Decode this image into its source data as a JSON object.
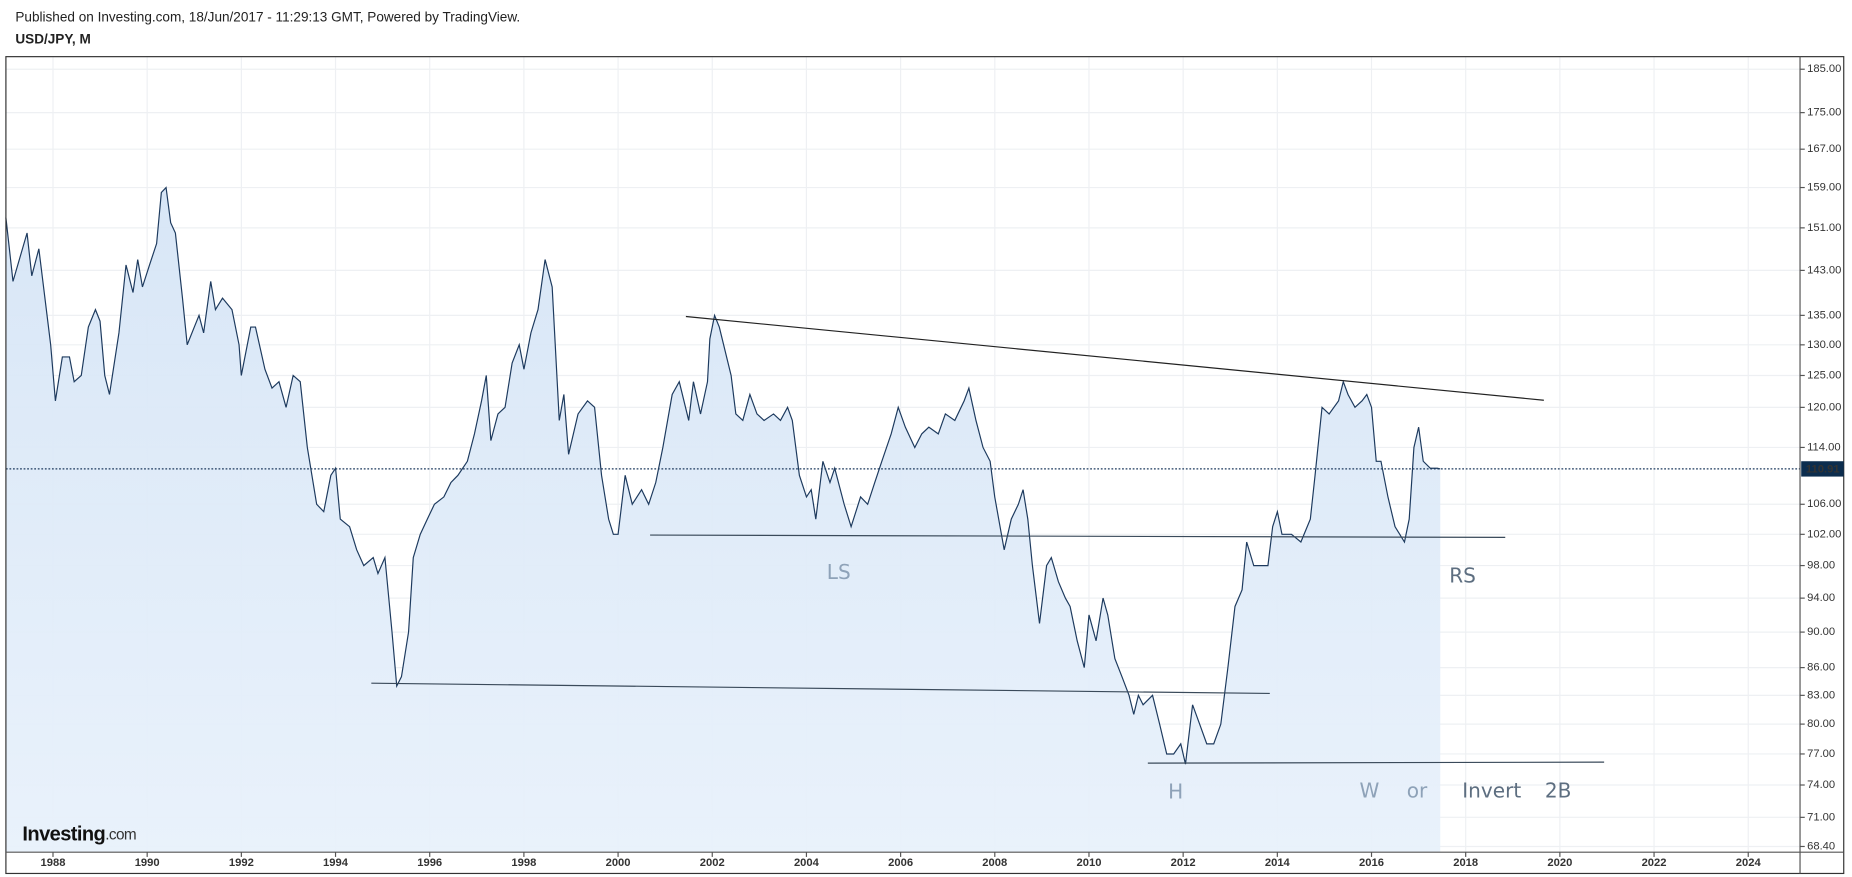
{
  "header": {
    "published": "Published on Investing.com, 18/Jun/2017 - 11:29:13 GMT, Powered by TradingView.",
    "symbol": "USD/JPY, M"
  },
  "logo": {
    "brand": "Investing",
    "suffix": ".com"
  },
  "chart_data": {
    "type": "line",
    "log_scale": true,
    "grid": true,
    "color": "#1d3a5e",
    "fill_color": "#d9e7f7",
    "xlim": [
      1987,
      2025.1
    ],
    "ylim": [
      67.9,
      188
    ],
    "xticks": [
      1988,
      1990,
      1992,
      1994,
      1996,
      1998,
      2000,
      2002,
      2004,
      2006,
      2008,
      2010,
      2012,
      2014,
      2016,
      2018,
      2020,
      2022,
      2024
    ],
    "yticks": [
      {
        "value": 185,
        "label": "185.00"
      },
      {
        "value": 175,
        "label": "175.00"
      },
      {
        "value": 167,
        "label": "167.00"
      },
      {
        "value": 159,
        "label": "159.00"
      },
      {
        "value": 151,
        "label": "151.00"
      },
      {
        "value": 143,
        "label": "143.00"
      },
      {
        "value": 135,
        "label": "135.00"
      },
      {
        "value": 130,
        "label": "130.00"
      },
      {
        "value": 125,
        "label": "125.00"
      },
      {
        "value": 120,
        "label": "120.00"
      },
      {
        "value": 114,
        "label": "114.00"
      },
      {
        "value": 106,
        "label": "106.00"
      },
      {
        "value": 102,
        "label": "102.00"
      },
      {
        "value": 98,
        "label": "98.00"
      },
      {
        "value": 94,
        "label": "94.00"
      },
      {
        "value": 90,
        "label": "90.00"
      },
      {
        "value": 86,
        "label": "86.00"
      },
      {
        "value": 83,
        "label": "83.00"
      },
      {
        "value": 80,
        "label": "80.00"
      },
      {
        "value": 77,
        "label": "77.00"
      },
      {
        "value": 74,
        "label": "74.00"
      },
      {
        "value": 71,
        "label": "71.00"
      },
      {
        "value": 68.4,
        "label": "68.40"
      }
    ],
    "last_price": 110.91,
    "x": [
      1987.0,
      1987.15,
      1987.45,
      1987.55,
      1987.7,
      1987.95,
      1988.05,
      1988.2,
      1988.35,
      1988.45,
      1988.6,
      1988.75,
      1988.9,
      1989.0,
      1989.1,
      1989.2,
      1989.4,
      1989.55,
      1989.7,
      1989.8,
      1989.9,
      1990.05,
      1990.2,
      1990.3,
      1990.4,
      1990.5,
      1990.6,
      1990.75,
      1990.85,
      1991.0,
      1991.1,
      1991.2,
      1991.35,
      1991.45,
      1991.6,
      1991.8,
      1991.95,
      1992.0,
      1992.2,
      1992.3,
      1992.5,
      1992.65,
      1992.8,
      1992.95,
      1993.1,
      1993.25,
      1993.4,
      1993.6,
      1993.75,
      1993.9,
      1994.0,
      1994.1,
      1994.3,
      1994.45,
      1994.6,
      1994.8,
      1994.9,
      1995.05,
      1995.2,
      1995.3,
      1995.4,
      1995.55,
      1995.65,
      1995.8,
      1995.95,
      1996.1,
      1996.3,
      1996.45,
      1996.6,
      1996.8,
      1996.95,
      1997.1,
      1997.2,
      1997.3,
      1997.45,
      1997.6,
      1997.75,
      1997.9,
      1998.0,
      1998.15,
      1998.3,
      1998.45,
      1998.6,
      1998.75,
      1998.85,
      1998.95,
      1999.15,
      1999.35,
      1999.5,
      1999.65,
      1999.8,
      1999.9,
      2000.0,
      2000.15,
      2000.3,
      2000.5,
      2000.65,
      2000.8,
      2000.95,
      2001.15,
      2001.3,
      2001.5,
      2001.6,
      2001.75,
      2001.9,
      2001.95,
      2002.05,
      2002.15,
      2002.4,
      2002.5,
      2002.65,
      2002.8,
      2002.95,
      2003.1,
      2003.3,
      2003.45,
      2003.6,
      2003.7,
      2003.85,
      2004.0,
      2004.1,
      2004.2,
      2004.35,
      2004.5,
      2004.6,
      2004.8,
      2004.95,
      2005.15,
      2005.3,
      2005.45,
      2005.6,
      2005.8,
      2005.95,
      2006.1,
      2006.3,
      2006.45,
      2006.6,
      2006.8,
      2006.95,
      2007.15,
      2007.35,
      2007.45,
      2007.6,
      2007.75,
      2007.9,
      2008.0,
      2008.2,
      2008.35,
      2008.5,
      2008.6,
      2008.7,
      2008.8,
      2008.95,
      2009.1,
      2009.2,
      2009.35,
      2009.5,
      2009.6,
      2009.75,
      2009.9,
      2010.0,
      2010.15,
      2010.3,
      2010.4,
      2010.55,
      2010.7,
      2010.85,
      2010.95,
      2011.05,
      2011.15,
      2011.35,
      2011.5,
      2011.65,
      2011.8,
      2011.95,
      2012.05,
      2012.2,
      2012.35,
      2012.5,
      2012.65,
      2012.8,
      2012.95,
      2013.1,
      2013.25,
      2013.35,
      2013.5,
      2013.65,
      2013.8,
      2013.9,
      2014.0,
      2014.1,
      2014.3,
      2014.5,
      2014.7,
      2014.8,
      2014.95,
      2015.1,
      2015.3,
      2015.4,
      2015.5,
      2015.65,
      2015.8,
      2015.9,
      2016.0,
      2016.1,
      2016.2,
      2016.35,
      2016.5,
      2016.6,
      2016.7,
      2016.8,
      2016.9,
      2017.0,
      2017.1,
      2017.25,
      2017.4,
      2017.46
    ],
    "values": [
      153,
      141,
      150,
      142,
      147,
      130,
      121,
      128,
      128,
      124,
      125,
      133,
      136,
      134,
      125,
      122,
      132,
      144,
      139,
      145,
      140,
      144,
      148,
      158,
      159,
      152,
      150,
      138,
      130,
      133,
      135,
      132,
      141,
      136,
      138,
      136,
      130,
      125,
      133,
      133,
      126,
      123,
      124,
      120,
      125,
      124,
      114,
      106,
      105,
      110,
      111,
      104,
      103,
      100,
      98,
      99,
      97,
      99,
      90,
      84,
      85,
      90,
      99,
      102,
      104,
      106,
      107,
      109,
      110,
      112,
      116,
      121,
      125,
      115,
      119,
      120,
      127,
      130,
      126,
      132,
      136,
      145,
      140,
      118,
      122,
      113,
      119,
      121,
      120,
      110,
      104,
      102,
      102,
      110,
      106,
      108,
      106,
      109,
      114,
      122,
      124,
      118,
      124,
      119,
      124,
      131,
      135,
      133,
      125,
      119,
      118,
      122,
      119,
      118,
      119,
      118,
      120,
      118,
      110,
      107,
      108,
      104,
      112,
      109,
      111,
      106,
      103,
      107,
      106,
      109,
      112,
      116,
      120,
      117,
      114,
      116,
      117,
      116,
      119,
      118,
      121,
      123,
      118,
      114,
      112,
      107,
      100,
      104,
      106,
      108,
      104,
      98,
      91,
      98,
      99,
      96,
      94,
      93,
      89,
      86,
      92,
      89,
      94,
      92,
      87,
      85,
      83,
      81,
      83,
      82,
      83,
      80,
      77,
      77,
      78,
      76,
      82,
      80,
      78,
      78,
      80,
      86,
      93,
      95,
      101,
      98,
      98,
      98,
      103,
      105,
      102,
      102,
      101,
      104,
      110,
      120,
      119,
      121,
      124,
      122,
      120,
      121,
      122,
      120,
      112,
      112,
      107,
      103,
      102,
      101,
      104,
      114,
      117,
      112,
      111,
      111,
      110.91
    ],
    "trendlines": [
      {
        "x": [
          2001.44,
          2019.66
        ],
        "values": [
          134.8,
          121.1
        ]
      },
      {
        "x": [
          2000.68,
          2018.84
        ],
        "values": [
          101.9,
          101.6
        ]
      },
      {
        "x": [
          1994.76,
          2013.84
        ],
        "values": [
          84.3,
          83.2
        ]
      },
      {
        "x": [
          2011.25,
          2020.94
        ],
        "values": [
          76.1,
          76.2
        ]
      }
    ],
    "annotations": [
      "LS",
      "RS",
      "H",
      "W",
      "or",
      "Invert",
      "2B"
    ]
  }
}
